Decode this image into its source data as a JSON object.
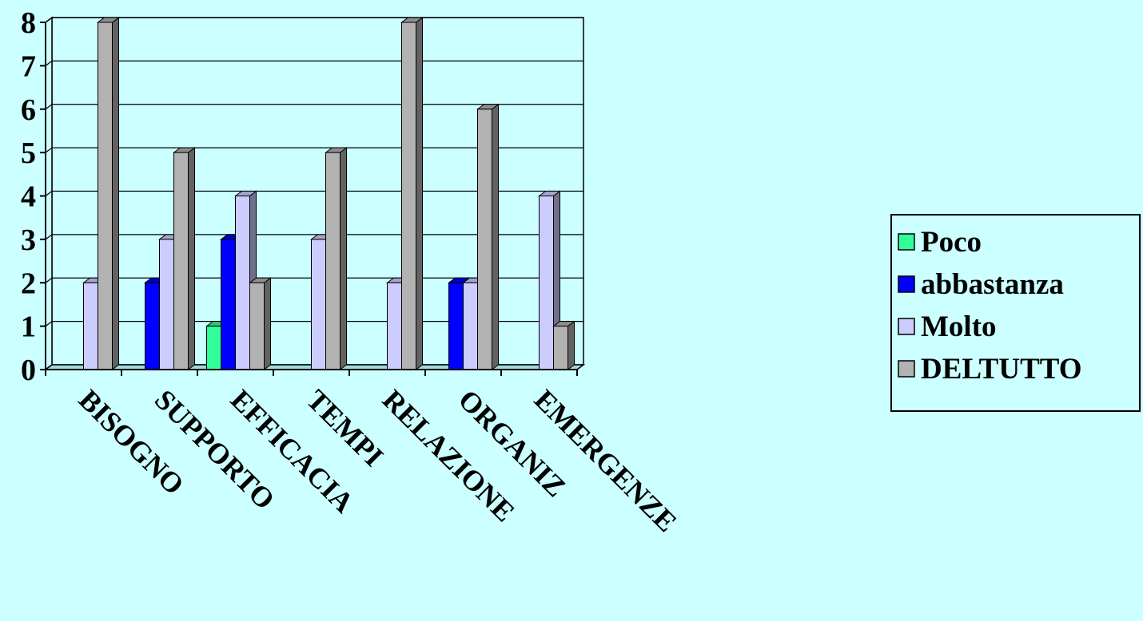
{
  "colors": {
    "background": "#CCFFFF",
    "plot_area": "#CCFFFF",
    "gridline": "#000000",
    "axis": "#000000"
  },
  "chart_data": {
    "type": "bar",
    "style": "3d-clustered-column",
    "title": "",
    "xlabel": "",
    "ylabel": "",
    "ylim": [
      0,
      8
    ],
    "yticks": [
      "0",
      "1",
      "2",
      "3",
      "4",
      "5",
      "6",
      "7",
      "8"
    ],
    "grid": true,
    "legend_position": "right",
    "categories": [
      "BISOGNO",
      "SUPPORTO",
      "EFFICACIA",
      "TEMPI",
      "RELAZIONE",
      "ORGANIZ",
      "EMERGENZE"
    ],
    "series": [
      {
        "name": "Poco",
        "color": "#33FF99",
        "values": [
          0,
          0,
          1,
          0,
          0,
          0,
          0
        ]
      },
      {
        "name": "abbastanza",
        "color": "#0000FF",
        "values": [
          0,
          2,
          3,
          0,
          0,
          2,
          0
        ]
      },
      {
        "name": "Molto",
        "color": "#CCCCFF",
        "values": [
          2,
          3,
          4,
          3,
          2,
          2,
          4
        ]
      },
      {
        "name": "DELTUTTO",
        "color": "#B2B2B2",
        "values": [
          8,
          5,
          2,
          5,
          8,
          6,
          1
        ]
      }
    ]
  }
}
